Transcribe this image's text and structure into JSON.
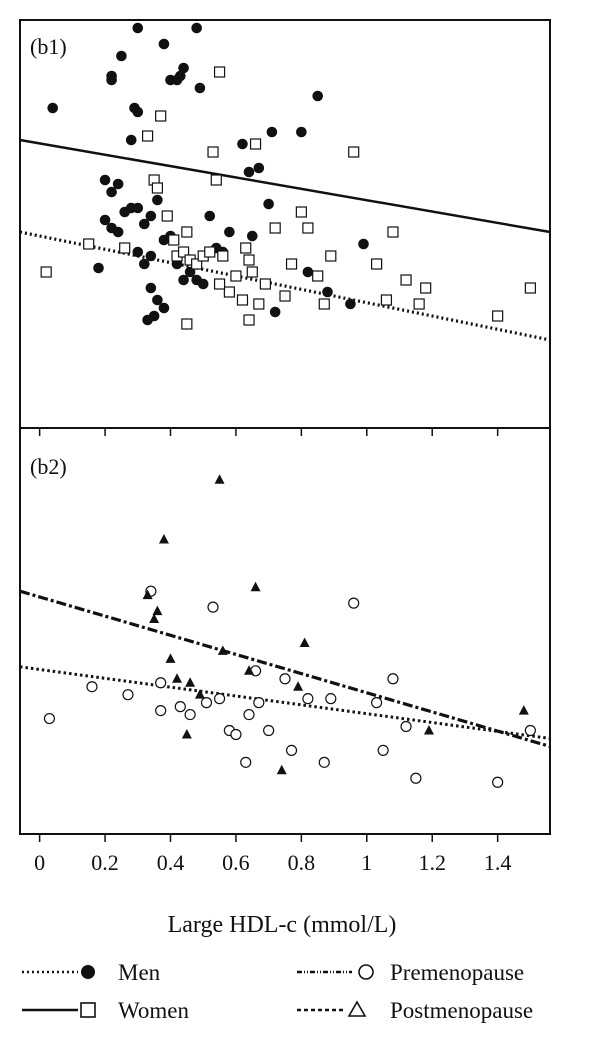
{
  "chart_data": {
    "type": "scatter",
    "xlabel": "Large HDL-c (mmol/L)",
    "xlim": [
      -0.06,
      1.56
    ],
    "x_ticks": [
      "0",
      "0.2",
      "0.4",
      "0.6",
      "0.8",
      "1",
      "1.2",
      "1.4"
    ],
    "x_tick_values": [
      0,
      0.2,
      0.4,
      0.6,
      0.8,
      1.0,
      1.2,
      1.4
    ],
    "grid": false,
    "legend_position": "bottom",
    "legend": [
      {
        "label": "Men",
        "line": "dotted",
        "marker": "filled-circle"
      },
      {
        "label": "Premenopause",
        "line": "dash-dot-dotted",
        "marker": "open-circle"
      },
      {
        "label": "Women",
        "line": "solid",
        "marker": "open-square"
      },
      {
        "label": "Postmenopause",
        "line": "dashed",
        "marker": "filled-triangle"
      }
    ],
    "panels": [
      {
        "label": "(b1)",
        "ylim": [
          0,
          1
        ],
        "series": [
          {
            "name": "Men",
            "marker": "filled-circle",
            "points": [
              [
                0.04,
                0.79
              ],
              [
                0.18,
                0.39
              ],
              [
                0.22,
                0.87
              ],
              [
                0.22,
                0.86
              ],
              [
                0.25,
                0.92
              ],
              [
                0.28,
                0.71
              ],
              [
                0.3,
                0.99
              ],
              [
                0.29,
                0.79
              ],
              [
                0.3,
                0.78
              ],
              [
                0.34,
                0.42
              ],
              [
                0.38,
                0.95
              ],
              [
                0.4,
                0.86
              ],
              [
                0.42,
                0.86
              ],
              [
                0.43,
                0.87
              ],
              [
                0.44,
                0.89
              ],
              [
                0.48,
                0.99
              ],
              [
                0.49,
                0.84
              ],
              [
                0.52,
                0.52
              ],
              [
                0.58,
                0.48
              ],
              [
                0.62,
                0.7
              ],
              [
                0.64,
                0.63
              ],
              [
                0.65,
                0.47
              ],
              [
                0.67,
                0.64
              ],
              [
                0.7,
                0.55
              ],
              [
                0.71,
                0.73
              ],
              [
                0.72,
                0.28
              ],
              [
                0.8,
                0.73
              ],
              [
                0.82,
                0.38
              ],
              [
                0.85,
                0.82
              ],
              [
                0.88,
                0.33
              ],
              [
                0.95,
                0.3
              ],
              [
                0.99,
                0.45
              ],
              [
                0.2,
                0.61
              ],
              [
                0.22,
                0.58
              ],
              [
                0.24,
                0.6
              ],
              [
                0.26,
                0.53
              ],
              [
                0.28,
                0.54
              ],
              [
                0.3,
                0.54
              ],
              [
                0.32,
                0.5
              ],
              [
                0.34,
                0.52
              ],
              [
                0.36,
                0.56
              ],
              [
                0.38,
                0.46
              ],
              [
                0.4,
                0.47
              ],
              [
                0.42,
                0.4
              ],
              [
                0.44,
                0.36
              ],
              [
                0.46,
                0.38
              ],
              [
                0.48,
                0.36
              ],
              [
                0.5,
                0.35
              ],
              [
                0.52,
                0.43
              ],
              [
                0.54,
                0.44
              ],
              [
                0.56,
                0.43
              ],
              [
                0.2,
                0.51
              ],
              [
                0.22,
                0.49
              ],
              [
                0.24,
                0.48
              ],
              [
                0.3,
                0.43
              ],
              [
                0.32,
                0.4
              ],
              [
                0.34,
                0.34
              ],
              [
                0.36,
                0.31
              ],
              [
                0.38,
                0.29
              ],
              [
                0.33,
                0.26
              ],
              [
                0.35,
                0.27
              ]
            ],
            "trend": [
              [
                -0.06,
                0.48
              ],
              [
                1.56,
                0.21
              ]
            ]
          },
          {
            "name": "Women",
            "marker": "open-square",
            "points": [
              [
                0.02,
                0.38
              ],
              [
                0.15,
                0.45
              ],
              [
                0.26,
                0.44
              ],
              [
                0.33,
                0.72
              ],
              [
                0.35,
                0.61
              ],
              [
                0.36,
                0.59
              ],
              [
                0.37,
                0.77
              ],
              [
                0.39,
                0.52
              ],
              [
                0.41,
                0.46
              ],
              [
                0.42,
                0.42
              ],
              [
                0.44,
                0.43
              ],
              [
                0.45,
                0.48
              ],
              [
                0.46,
                0.41
              ],
              [
                0.48,
                0.4
              ],
              [
                0.5,
                0.42
              ],
              [
                0.52,
                0.43
              ],
              [
                0.53,
                0.68
              ],
              [
                0.54,
                0.61
              ],
              [
                0.55,
                0.88
              ],
              [
                0.56,
                0.42
              ],
              [
                0.58,
                0.33
              ],
              [
                0.6,
                0.37
              ],
              [
                0.62,
                0.31
              ],
              [
                0.63,
                0.44
              ],
              [
                0.64,
                0.41
              ],
              [
                0.65,
                0.38
              ],
              [
                0.66,
                0.7
              ],
              [
                0.67,
                0.3
              ],
              [
                0.69,
                0.35
              ],
              [
                0.72,
                0.49
              ],
              [
                0.75,
                0.32
              ],
              [
                0.77,
                0.4
              ],
              [
                0.8,
                0.53
              ],
              [
                0.82,
                0.49
              ],
              [
                0.85,
                0.37
              ],
              [
                0.87,
                0.3
              ],
              [
                0.89,
                0.42
              ],
              [
                0.96,
                0.68
              ],
              [
                1.03,
                0.4
              ],
              [
                1.06,
                0.31
              ],
              [
                1.08,
                0.48
              ],
              [
                1.12,
                0.36
              ],
              [
                1.18,
                0.34
              ],
              [
                1.16,
                0.3
              ],
              [
                1.5,
                0.34
              ],
              [
                1.4,
                0.27
              ],
              [
                0.45,
                0.25
              ],
              [
                0.55,
                0.35
              ],
              [
                0.64,
                0.26
              ]
            ],
            "trend": [
              [
                -0.06,
                0.71
              ],
              [
                1.56,
                0.48
              ]
            ]
          }
        ]
      },
      {
        "label": "(b2)",
        "ylim": [
          0,
          1
        ],
        "series": [
          {
            "name": "Premenopause",
            "marker": "open-circle",
            "points": [
              [
                0.03,
                0.28
              ],
              [
                0.16,
                0.36
              ],
              [
                0.27,
                0.34
              ],
              [
                0.34,
                0.6
              ],
              [
                0.37,
                0.37
              ],
              [
                0.37,
                0.3
              ],
              [
                0.43,
                0.31
              ],
              [
                0.46,
                0.29
              ],
              [
                0.51,
                0.32
              ],
              [
                0.53,
                0.56
              ],
              [
                0.55,
                0.33
              ],
              [
                0.58,
                0.25
              ],
              [
                0.6,
                0.24
              ],
              [
                0.63,
                0.17
              ],
              [
                0.64,
                0.29
              ],
              [
                0.67,
                0.32
              ],
              [
                0.7,
                0.25
              ],
              [
                0.75,
                0.38
              ],
              [
                0.77,
                0.2
              ],
              [
                0.82,
                0.33
              ],
              [
                0.87,
                0.17
              ],
              [
                0.89,
                0.33
              ],
              [
                0.96,
                0.57
              ],
              [
                1.03,
                0.32
              ],
              [
                1.05,
                0.2
              ],
              [
                1.08,
                0.38
              ],
              [
                1.12,
                0.26
              ],
              [
                1.15,
                0.13
              ],
              [
                1.4,
                0.12
              ],
              [
                1.5,
                0.25
              ],
              [
                0.66,
                0.4
              ]
            ],
            "trend": [
              [
                -0.06,
                0.41
              ],
              [
                1.56,
                0.23
              ]
            ]
          },
          {
            "name": "Postmenopause",
            "marker": "filled-triangle",
            "points": [
              [
                0.33,
                0.59
              ],
              [
                0.35,
                0.53
              ],
              [
                0.36,
                0.55
              ],
              [
                0.38,
                0.73
              ],
              [
                0.4,
                0.43
              ],
              [
                0.42,
                0.38
              ],
              [
                0.45,
                0.24
              ],
              [
                0.46,
                0.37
              ],
              [
                0.49,
                0.34
              ],
              [
                0.55,
                0.88
              ],
              [
                0.56,
                0.45
              ],
              [
                0.64,
                0.4
              ],
              [
                0.66,
                0.61
              ],
              [
                0.74,
                0.15
              ],
              [
                0.79,
                0.36
              ],
              [
                0.81,
                0.47
              ],
              [
                1.19,
                0.25
              ],
              [
                1.48,
                0.3
              ]
            ],
            "trend": [
              [
                -0.06,
                0.6
              ],
              [
                1.56,
                0.21
              ]
            ]
          }
        ]
      }
    ]
  }
}
